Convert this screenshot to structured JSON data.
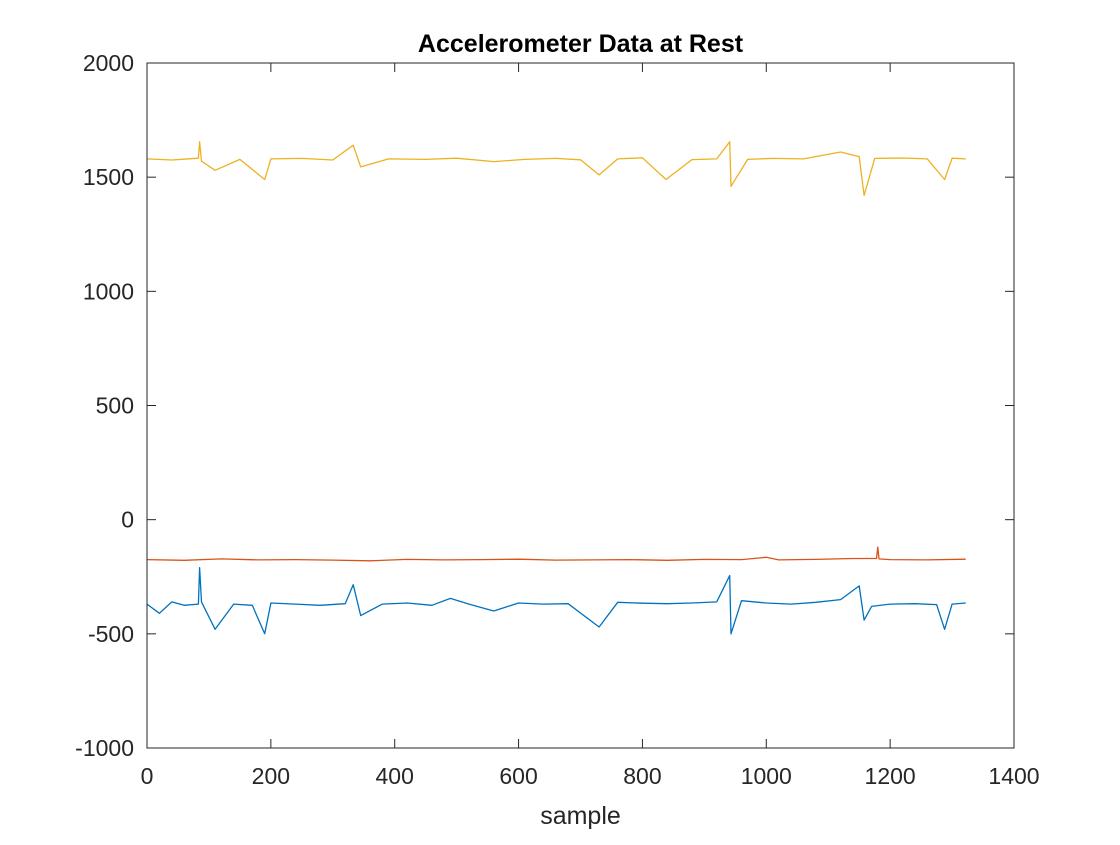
{
  "chart_data": {
    "type": "line",
    "title": "Accelerometer Data at Rest",
    "xlabel": "sample",
    "ylabel": "",
    "xlim": [
      0,
      1400
    ],
    "ylim": [
      -1000,
      2000
    ],
    "xticks": [
      "0",
      "200",
      "400",
      "600",
      "800",
      "1000",
      "1200",
      "1400"
    ],
    "yticks": [
      "-1000",
      "-500",
      "0",
      "500",
      "1000",
      "1500",
      "2000"
    ],
    "grid": false,
    "legend": "none",
    "series": [
      {
        "color": "#0072BD",
        "x": [
          0,
          20,
          40,
          60,
          83,
          85,
          88,
          110,
          140,
          170,
          190,
          200,
          240,
          280,
          320,
          333,
          345,
          380,
          420,
          460,
          490,
          520,
          560,
          600,
          640,
          680,
          730,
          760,
          800,
          840,
          880,
          920,
          941,
          943,
          960,
          1000,
          1040,
          1080,
          1120,
          1150,
          1158,
          1170,
          1200,
          1240,
          1275,
          1288,
          1300,
          1322
        ],
        "y": [
          -370,
          -410,
          -360,
          -375,
          -370,
          -210,
          -360,
          -480,
          -370,
          -375,
          -500,
          -365,
          -370,
          -375,
          -368,
          -285,
          -420,
          -370,
          -365,
          -375,
          -345,
          -370,
          -400,
          -365,
          -370,
          -368,
          -470,
          -362,
          -366,
          -368,
          -365,
          -360,
          -245,
          -500,
          -355,
          -365,
          -370,
          -362,
          -350,
          -290,
          -440,
          -380,
          -370,
          -368,
          -372,
          -480,
          -370,
          -365
        ]
      },
      {
        "color": "#D95319",
        "x": [
          0,
          60,
          120,
          180,
          240,
          300,
          360,
          420,
          480,
          540,
          600,
          660,
          720,
          780,
          840,
          900,
          960,
          1000,
          1020,
          1080,
          1140,
          1178,
          1180,
          1182,
          1200,
          1260,
          1322
        ],
        "y": [
          -175,
          -178,
          -172,
          -176,
          -175,
          -177,
          -180,
          -174,
          -176,
          -175,
          -173,
          -177,
          -176,
          -175,
          -178,
          -174,
          -175,
          -165,
          -176,
          -174,
          -170,
          -170,
          -120,
          -172,
          -175,
          -176,
          -173
        ]
      },
      {
        "color": "#EDB120",
        "x": [
          0,
          40,
          83,
          85,
          88,
          110,
          150,
          190,
          200,
          250,
          300,
          333,
          345,
          390,
          450,
          500,
          560,
          610,
          660,
          700,
          730,
          760,
          800,
          838,
          880,
          920,
          941,
          943,
          970,
          1010,
          1060,
          1120,
          1150,
          1158,
          1175,
          1220,
          1260,
          1288,
          1300,
          1322
        ],
        "y": [
          1580,
          1575,
          1583,
          1655,
          1570,
          1530,
          1578,
          1490,
          1580,
          1582,
          1575,
          1640,
          1545,
          1580,
          1578,
          1583,
          1568,
          1578,
          1582,
          1576,
          1510,
          1580,
          1585,
          1490,
          1577,
          1580,
          1655,
          1460,
          1578,
          1582,
          1580,
          1610,
          1590,
          1420,
          1582,
          1584,
          1580,
          1490,
          1583,
          1580
        ]
      }
    ]
  }
}
